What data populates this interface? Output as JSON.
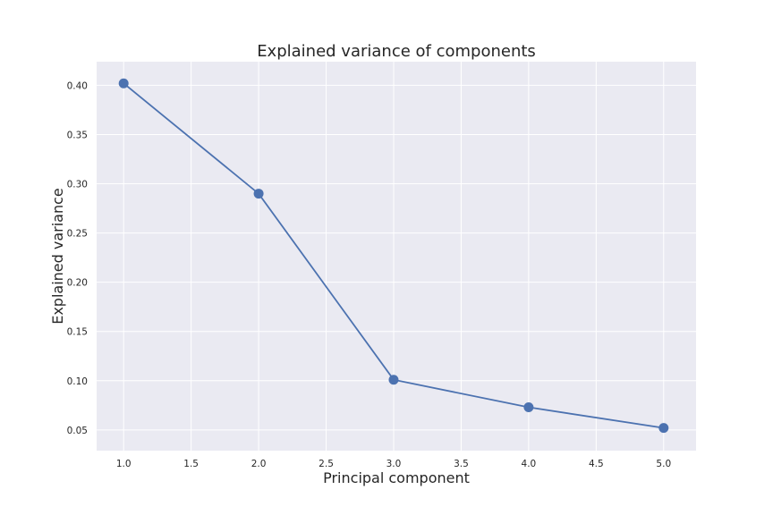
{
  "chart_data": {
    "type": "line",
    "title": "Explained variance of components",
    "xlabel": "Principal component",
    "ylabel": "Explained variance",
    "x": [
      1,
      2,
      3,
      4,
      5
    ],
    "series": [
      {
        "values": [
          0.402,
          0.29,
          0.101,
          0.073,
          0.052
        ]
      }
    ],
    "xlim": [
      0.8,
      5.24
    ],
    "ylim": [
      0.029,
      0.424
    ],
    "xticks": [
      1.0,
      1.5,
      2.0,
      2.5,
      3.0,
      3.5,
      4.0,
      4.5,
      5.0
    ],
    "xtick_labels": [
      "1.0",
      "1.5",
      "2.0",
      "2.5",
      "3.0",
      "3.5",
      "4.0",
      "4.5",
      "5.0"
    ],
    "yticks": [
      0.05,
      0.1,
      0.15,
      0.2,
      0.25,
      0.3,
      0.35,
      0.4
    ],
    "ytick_labels": [
      "0.05",
      "0.10",
      "0.15",
      "0.20",
      "0.25",
      "0.30",
      "0.35",
      "0.40"
    ],
    "grid": true,
    "markers": true,
    "colors": {
      "line": "#4c72b0",
      "plot_background": "#eaeaf2",
      "grid": "#ffffff"
    }
  }
}
